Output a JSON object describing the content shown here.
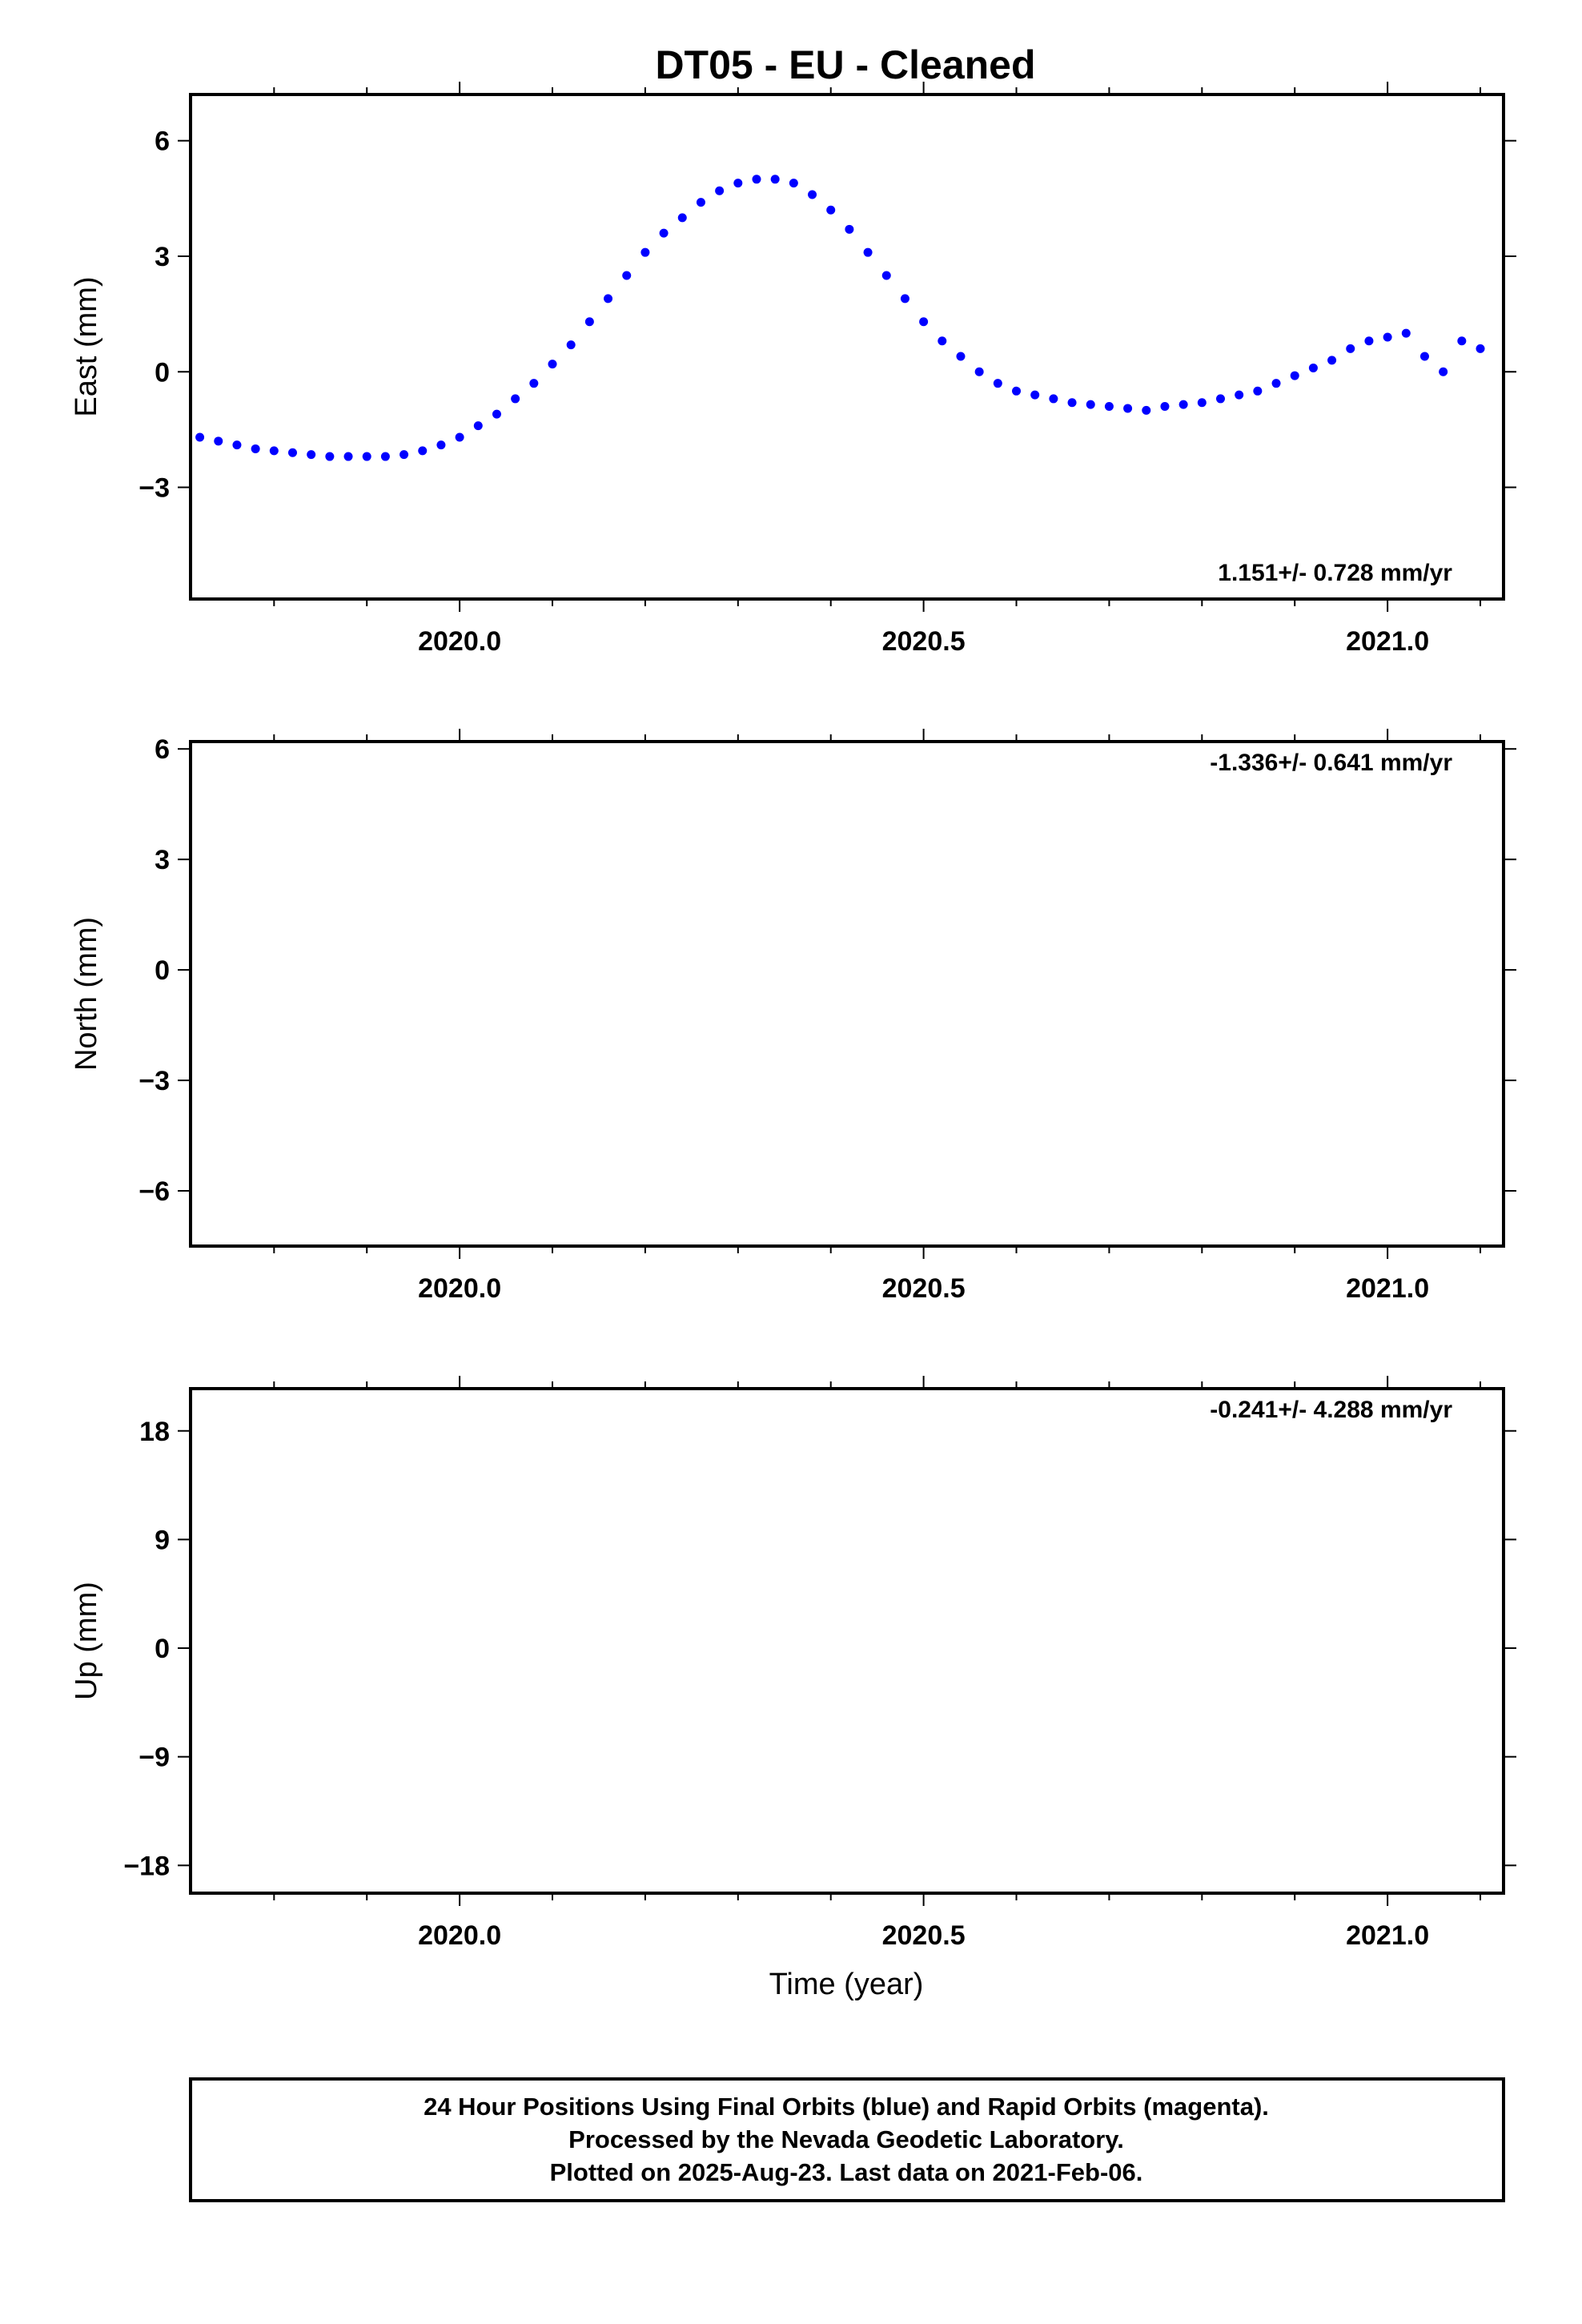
{
  "title": "DT05  - EU - Cleaned",
  "x_axis_label": "Time (year)",
  "footer": {
    "lines": [
      "24 Hour Positions Using Final Orbits (blue) and Rapid Orbits (magenta).",
      "Processed by the Nevada Geodetic Laboratory.",
      "Plotted on 2025-Aug-23. Last data on 2021-Feb-06."
    ]
  },
  "colors": {
    "observations": "#0000ff",
    "fit": "#ff0000",
    "frame": "#000000"
  },
  "chart_data": [
    {
      "type": "scatter",
      "ylabel": "East (mm)",
      "rate_label": "1.151+/- 0.728 mm/yr",
      "xlim": [
        2019.71,
        2021.125
      ],
      "ylim": [
        -5.9,
        7.2
      ],
      "xticks": [
        2020.0,
        2020.5,
        2021.0
      ],
      "xtick_labels": [
        "2020.0",
        "2020.5",
        "2021.0"
      ],
      "yticks": [
        -3,
        0,
        3,
        6
      ],
      "ytick_labels": [
        "−3",
        "0",
        "3",
        "6"
      ],
      "series": [
        {
          "x": [
            2019.72,
            2019.74,
            2019.76,
            2019.78,
            2019.8,
            2019.82,
            2019.84,
            2019.86,
            2019.88,
            2019.9,
            2019.92,
            2019.94,
            2019.96,
            2019.98,
            2020.0,
            2020.02,
            2020.04,
            2020.06,
            2020.08,
            2020.1,
            2020.12,
            2020.14,
            2020.16,
            2020.18,
            2020.2,
            2020.22,
            2020.24,
            2020.26,
            2020.28,
            2020.3,
            2020.32,
            2020.34,
            2020.36,
            2020.38,
            2020.4,
            2020.42,
            2020.44,
            2020.46,
            2020.48,
            2020.5,
            2020.52,
            2020.54,
            2020.56,
            2020.58,
            2020.6,
            2020.62,
            2020.64,
            2020.66,
            2020.68,
            2020.7,
            2020.72,
            2020.74,
            2020.76,
            2020.78,
            2020.8,
            2020.82,
            2020.84,
            2020.86,
            2020.88,
            2020.9,
            2020.92,
            2020.94,
            2020.96,
            2020.98,
            2021.0,
            2021.02,
            2021.04,
            2021.06,
            2021.08,
            2021.1
          ],
          "y": [
            -1.7,
            -1.8,
            -1.9,
            -2.0,
            -2.05,
            -2.1,
            -2.15,
            -2.2,
            -2.2,
            -2.2,
            -2.2,
            -2.15,
            -2.05,
            -1.9,
            -1.7,
            -1.4,
            -1.1,
            -0.7,
            -0.3,
            0.2,
            0.7,
            1.3,
            1.9,
            2.5,
            3.1,
            3.6,
            4.0,
            4.4,
            4.7,
            4.9,
            5.0,
            5.0,
            4.9,
            4.6,
            4.2,
            3.7,
            3.1,
            2.5,
            1.9,
            1.3,
            0.8,
            0.4,
            0.0,
            -0.3,
            -0.5,
            -0.6,
            -0.7,
            -0.8,
            -0.85,
            -0.9,
            -0.95,
            -1.0,
            -0.9,
            -0.85,
            -0.8,
            -0.7,
            -0.6,
            -0.5,
            -0.3,
            -0.1,
            0.1,
            0.3,
            0.6,
            0.8,
            0.9,
            1.0,
            0.4,
            0.0,
            0.8,
            0.6
          ]
        },
        {
          "name": "rapid orbits",
          "x": [],
          "y": []
        }
      ]
    },
    {
      "type": "scatter",
      "ylabel": "North (mm)",
      "rate_label": "-1.336+/- 0.641 mm/yr",
      "xlim": [
        2019.71,
        2021.125
      ],
      "ylim": [
        -7.5,
        6.2
      ],
      "xticks": [
        2020.0,
        2020.5,
        2021.0
      ],
      "xtick_labels": [
        "2020.0",
        "2020.5",
        "2021.0"
      ],
      "yticks": [
        -6,
        -3,
        0,
        3,
        6
      ],
      "ytick_labels": [
        "−6",
        "−3",
        "0",
        "3",
        "6"
      ],
      "series": []
    },
    {
      "type": "scatter",
      "ylabel": "Up (mm)",
      "rate_label": "-0.241+/- 4.288 mm/yr",
      "xlim": [
        2019.71,
        2021.125
      ],
      "ylim": [
        -20.3,
        21.5
      ],
      "xticks": [
        2020.0,
        2020.5,
        2021.0
      ],
      "xtick_labels": [
        "2020.0",
        "2020.5",
        "2021.0"
      ],
      "yticks": [
        -18,
        -9,
        0,
        9,
        18
      ],
      "ytick_labels": [
        "−18",
        "−9",
        "0",
        "9",
        "18"
      ],
      "series": []
    }
  ]
}
